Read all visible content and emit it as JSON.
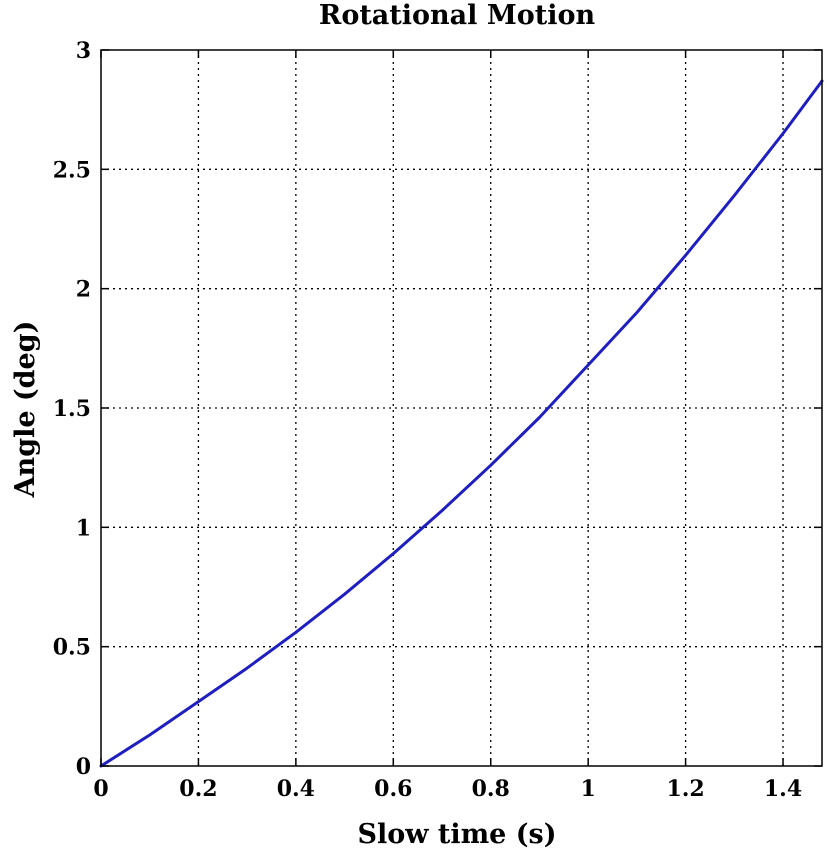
{
  "chart_data": {
    "type": "line",
    "title": "Rotational Motion",
    "xlabel": "Slow time (s)",
    "ylabel": "Angle (deg)",
    "xlim": [
      0,
      1.48
    ],
    "ylim": [
      0,
      3
    ],
    "grid": true,
    "x_ticks": [
      0,
      0.2,
      0.4,
      0.6,
      0.8,
      1,
      1.2,
      1.4
    ],
    "x_tick_labels": [
      "0",
      "0.2",
      "0.4",
      "0.6",
      "0.8",
      "1",
      "1.2",
      "1.4"
    ],
    "y_ticks": [
      0,
      0.5,
      1,
      1.5,
      2,
      2.5,
      3
    ],
    "y_tick_labels": [
      "0",
      "0.5",
      "1",
      "1.5",
      "2",
      "2.5",
      "3"
    ],
    "series": [
      {
        "color": "#1f1fbf",
        "x": [
          0,
          0.1,
          0.2,
          0.3,
          0.4,
          0.5,
          0.6,
          0.7,
          0.8,
          0.9,
          1.0,
          1.1,
          1.2,
          1.3,
          1.4,
          1.48
        ],
        "y": [
          0,
          0.13,
          0.27,
          0.41,
          0.56,
          0.72,
          0.89,
          1.07,
          1.26,
          1.46,
          1.68,
          1.9,
          2.14,
          2.39,
          2.65,
          2.87
        ]
      }
    ]
  }
}
